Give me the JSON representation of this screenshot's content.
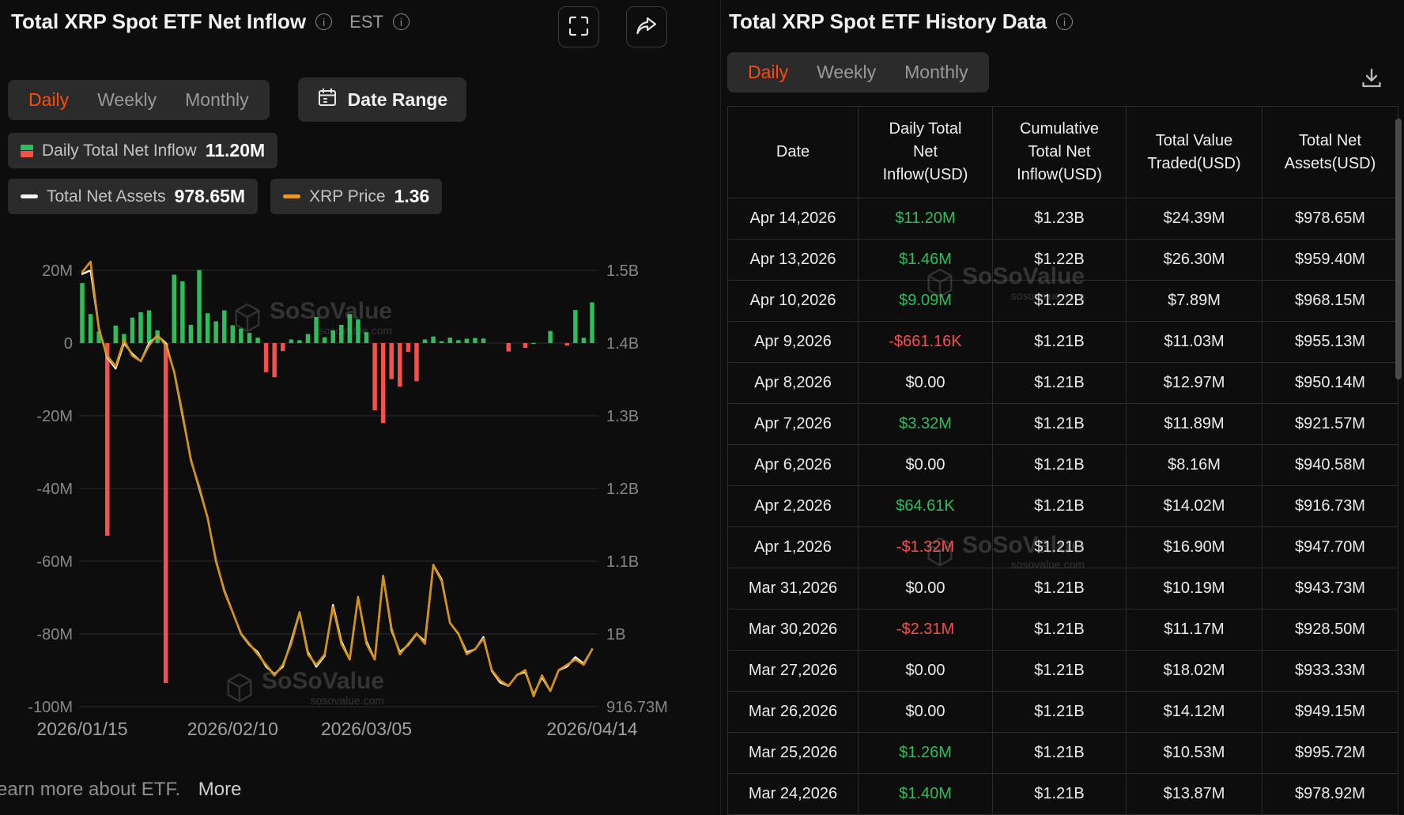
{
  "colors": {
    "background": "#0d0d0d",
    "accent_orange": "#fa4b0f",
    "green": "#2ebd5b",
    "red": "#f5504a",
    "price_gold": "#d6920f",
    "assets_white": "#f5f5f5",
    "grid": "#2a2a2a",
    "chip_bg": "#2b2b2b",
    "text_secondary": "#9a9a9a"
  },
  "watermark": {
    "brand": "SoSoValue",
    "domain": "sosovalue.com"
  },
  "left_panel": {
    "title": "Total XRP Spot ETF Net Inflow",
    "est_label": "EST",
    "tabs": [
      "Daily",
      "Weekly",
      "Monthly"
    ],
    "active_tab": "Daily",
    "date_range_label": "Date Range",
    "legend": [
      {
        "label": "Daily Total Net Inflow",
        "value": "11.20M"
      },
      {
        "label": "Total Net Assets",
        "value": "978.65M"
      },
      {
        "label": "XRP Price",
        "value": "1.36"
      }
    ],
    "footer": {
      "text": "earn more about ETF.",
      "more": "More"
    }
  },
  "right_panel": {
    "title": "Total XRP Spot ETF History Data",
    "tabs": [
      "Daily",
      "Weekly",
      "Monthly"
    ],
    "active_tab": "Daily",
    "table": {
      "headers": [
        "Date",
        "Daily Total Net Inflow(USD)",
        "Cumulative Total Net Inflow(USD)",
        "Total Value Traded(USD)",
        "Total Net Assets(USD)"
      ],
      "rows": [
        {
          "date": "Apr 14,2026",
          "inflow": "$11.20M",
          "inflow_color": "green",
          "cumulative": "$1.23B",
          "traded": "$24.39M",
          "assets": "$978.65M"
        },
        {
          "date": "Apr 13,2026",
          "inflow": "$1.46M",
          "inflow_color": "green",
          "cumulative": "$1.22B",
          "traded": "$26.30M",
          "assets": "$959.40M"
        },
        {
          "date": "Apr 10,2026",
          "inflow": "$9.09M",
          "inflow_color": "green",
          "cumulative": "$1.22B",
          "traded": "$7.89M",
          "assets": "$968.15M"
        },
        {
          "date": "Apr 9,2026",
          "inflow": "-$661.16K",
          "inflow_color": "red",
          "cumulative": "$1.21B",
          "traded": "$11.03M",
          "assets": "$955.13M"
        },
        {
          "date": "Apr 8,2026",
          "inflow": "$0.00",
          "inflow_color": "",
          "cumulative": "$1.21B",
          "traded": "$12.97M",
          "assets": "$950.14M"
        },
        {
          "date": "Apr 7,2026",
          "inflow": "$3.32M",
          "inflow_color": "green",
          "cumulative": "$1.21B",
          "traded": "$11.89M",
          "assets": "$921.57M"
        },
        {
          "date": "Apr 6,2026",
          "inflow": "$0.00",
          "inflow_color": "",
          "cumulative": "$1.21B",
          "traded": "$8.16M",
          "assets": "$940.58M"
        },
        {
          "date": "Apr 2,2026",
          "inflow": "$64.61K",
          "inflow_color": "green",
          "cumulative": "$1.21B",
          "traded": "$14.02M",
          "assets": "$916.73M"
        },
        {
          "date": "Apr 1,2026",
          "inflow": "-$1.32M",
          "inflow_color": "red",
          "cumulative": "$1.21B",
          "traded": "$16.90M",
          "assets": "$947.70M"
        },
        {
          "date": "Mar 31,2026",
          "inflow": "$0.00",
          "inflow_color": "",
          "cumulative": "$1.21B",
          "traded": "$10.19M",
          "assets": "$943.73M"
        },
        {
          "date": "Mar 30,2026",
          "inflow": "-$2.31M",
          "inflow_color": "red",
          "cumulative": "$1.21B",
          "traded": "$11.17M",
          "assets": "$928.50M"
        },
        {
          "date": "Mar 27,2026",
          "inflow": "$0.00",
          "inflow_color": "",
          "cumulative": "$1.21B",
          "traded": "$18.02M",
          "assets": "$933.33M"
        },
        {
          "date": "Mar 26,2026",
          "inflow": "$0.00",
          "inflow_color": "",
          "cumulative": "$1.21B",
          "traded": "$14.12M",
          "assets": "$949.15M"
        },
        {
          "date": "Mar 25,2026",
          "inflow": "$1.26M",
          "inflow_color": "green",
          "cumulative": "$1.21B",
          "traded": "$10.53M",
          "assets": "$995.72M"
        },
        {
          "date": "Mar 24,2026",
          "inflow": "$1.40M",
          "inflow_color": "green",
          "cumulative": "$1.21B",
          "traded": "$13.87M",
          "assets": "$978.92M"
        }
      ]
    }
  },
  "chart_data": {
    "type": "combo",
    "title": "Total XRP Spot ETF Net Inflow",
    "x": [
      "2026/01/15",
      "2026/01/16",
      "2026/01/19",
      "2026/01/20",
      "2026/01/21",
      "2026/01/22",
      "2026/01/23",
      "2026/01/26",
      "2026/01/27",
      "2026/01/28",
      "2026/01/29",
      "2026/01/30",
      "2026/02/02",
      "2026/02/03",
      "2026/02/04",
      "2026/02/05",
      "2026/02/06",
      "2026/02/09",
      "2026/02/10",
      "2026/02/11",
      "2026/02/12",
      "2026/02/13",
      "2026/02/17",
      "2026/02/18",
      "2026/02/19",
      "2026/02/20",
      "2026/02/23",
      "2026/02/24",
      "2026/02/25",
      "2026/02/26",
      "2026/02/27",
      "2026/03/02",
      "2026/03/03",
      "2026/03/04",
      "2026/03/05",
      "2026/03/06",
      "2026/03/09",
      "2026/03/10",
      "2026/03/11",
      "2026/03/12",
      "2026/03/13",
      "2026/03/16",
      "2026/03/17",
      "2026/03/18",
      "2026/03/19",
      "2026/03/20",
      "2026/03/23",
      "2026/03/24",
      "2026/03/25",
      "2026/03/26",
      "2026/03/27",
      "2026/03/30",
      "2026/03/31",
      "2026/04/01",
      "2026/04/02",
      "2026/04/06",
      "2026/04/07",
      "2026/04/08",
      "2026/04/09",
      "2026/04/10",
      "2026/04/13",
      "2026/04/14"
    ],
    "series": [
      {
        "name": "Daily Total Net Inflow",
        "type": "bar",
        "unit": "M USD",
        "values": [
          16.5,
          8,
          3.2,
          -53,
          4.8,
          2.5,
          7,
          8.5,
          9,
          3.5,
          -93.5,
          18.8,
          17,
          5,
          20.1,
          8.2,
          6,
          9,
          4.9,
          4,
          2.8,
          1.5,
          -8,
          -9.4,
          -2.2,
          1,
          0.8,
          2.5,
          7.2,
          1.6,
          3.5,
          5,
          8,
          6.5,
          3,
          -18.5,
          -22,
          -9.9,
          -12,
          -2.4,
          -10.5,
          1,
          1.8,
          0.5,
          1.5,
          0.8,
          1.2,
          1.4,
          1.26,
          0,
          0,
          -2.31,
          0,
          -1.32,
          0.06,
          0,
          3.32,
          0,
          -0.66,
          9.09,
          1.46,
          11.2
        ]
      },
      {
        "name": "Total Net Assets",
        "type": "line",
        "unit": "B USD",
        "values": [
          1.495,
          1.5,
          1.42,
          1.38,
          1.365,
          1.4,
          1.385,
          1.375,
          1.4,
          1.41,
          1.4,
          1.36,
          1.3,
          1.24,
          1.2,
          1.16,
          1.1,
          1.06,
          1.03,
          1,
          0.985,
          0.975,
          0.955,
          0.945,
          0.955,
          0.99,
          1.03,
          0.975,
          0.955,
          0.97,
          1.04,
          0.99,
          0.965,
          1.05,
          0.99,
          0.965,
          1.08,
          1.005,
          0.975,
          0.985,
          1,
          0.99,
          1.095,
          1.075,
          1.015,
          1,
          0.975,
          0.97892,
          0.99572,
          0.94915,
          0.93333,
          0.9285,
          0.94373,
          0.9477,
          0.91673,
          0.94058,
          0.92157,
          0.95014,
          0.95513,
          0.96815,
          0.9594,
          0.97865
        ]
      },
      {
        "name": "XRP Price",
        "type": "line",
        "unit": "USD",
        "values": [
          2.08,
          2.1,
          1.97,
          1.92,
          1.9,
          1.95,
          1.92,
          1.91,
          1.94,
          1.96,
          1.94,
          1.89,
          1.81,
          1.72,
          1.67,
          1.61,
          1.53,
          1.47,
          1.43,
          1.39,
          1.37,
          1.35,
          1.33,
          1.31,
          1.33,
          1.37,
          1.43,
          1.35,
          1.33,
          1.35,
          1.44,
          1.37,
          1.34,
          1.46,
          1.37,
          1.34,
          1.5,
          1.4,
          1.35,
          1.37,
          1.39,
          1.37,
          1.52,
          1.49,
          1.41,
          1.39,
          1.35,
          1.36,
          1.38,
          1.32,
          1.3,
          1.29,
          1.31,
          1.32,
          1.27,
          1.31,
          1.28,
          1.32,
          1.33,
          1.34,
          1.33,
          1.36
        ]
      }
    ],
    "left_axis": {
      "ticks": [
        "20M",
        "0",
        "-20M",
        "-40M",
        "-60M",
        "-80M",
        "-100M"
      ],
      "max": 20,
      "min": -100
    },
    "right_axis": {
      "ticks": [
        "1.5B",
        "1.4B",
        "1.3B",
        "1.2B",
        "1.1B",
        "1B",
        "916.73M"
      ]
    },
    "x_ticks": {
      "labels": [
        "2026/01/15",
        "2026/02/10",
        "2026/03/05",
        "2026/04/14"
      ],
      "indices": [
        0,
        18,
        34,
        61
      ]
    },
    "grid": true,
    "legend_position": "top"
  }
}
